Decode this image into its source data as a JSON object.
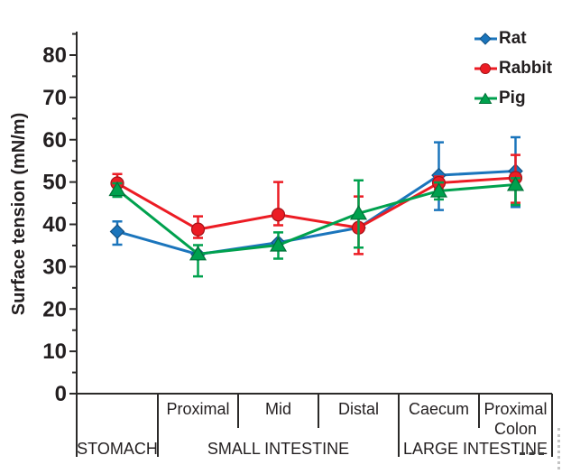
{
  "chart_data": {
    "type": "line",
    "title": "",
    "xlabel": "",
    "ylabel": "Surface tension (mN/m)",
    "ylim": [
      0,
      85
    ],
    "ytick_major_step": 10,
    "ytick_minor_step": 5,
    "ytick_labels": [
      "0",
      "10",
      "20",
      "30",
      "40",
      "50",
      "60",
      "70",
      "80"
    ],
    "grid": false,
    "legend_position": "top-right",
    "categories": [
      "Stomach",
      "Proximal small intestine",
      "Mid small intestine",
      "Distal small intestine",
      "Caecum",
      "Proximal colon"
    ],
    "x_segment_labels": [
      "",
      "Proximal",
      "Mid",
      "Distal",
      "Caecum",
      "Proximal Colon"
    ],
    "x_group_labels": [
      {
        "label": "STOMACH",
        "start": 0,
        "end": 1
      },
      {
        "label": "SMALL INTESTINE",
        "start": 1,
        "end": 4
      },
      {
        "label": "LARGE INTESTINE",
        "start": 4,
        "end": 6
      }
    ],
    "series": [
      {
        "name": "Rat",
        "color": "#1B75BC",
        "marker": "diamond",
        "values": [
          38.3,
          32.9,
          35.7,
          39.2,
          51.6,
          52.6
        ],
        "err_up": [
          2.4,
          0,
          0,
          0,
          7.8,
          8.0
        ],
        "err_down": [
          3.1,
          0,
          0,
          0,
          8.2,
          8.5
        ]
      },
      {
        "name": "Rabbit",
        "color": "#EC1C24",
        "marker": "circle",
        "values": [
          49.7,
          38.8,
          42.3,
          39.2,
          49.8,
          51.0
        ],
        "err_up": [
          2.2,
          3.1,
          7.7,
          7.4,
          1.5,
          5.4
        ],
        "err_down": [
          2.0,
          2.0,
          2.5,
          6.2,
          1.5,
          5.9
        ]
      },
      {
        "name": "Pig",
        "color": "#00A14E",
        "marker": "triangle",
        "values": [
          48.2,
          33.0,
          35.1,
          42.6,
          47.9,
          49.4
        ],
        "err_up": [
          1.5,
          2.1,
          3.0,
          7.8,
          2.0,
          1.5
        ],
        "err_down": [
          1.7,
          5.3,
          3.2,
          8.1,
          2.0,
          4.8
        ]
      }
    ]
  }
}
